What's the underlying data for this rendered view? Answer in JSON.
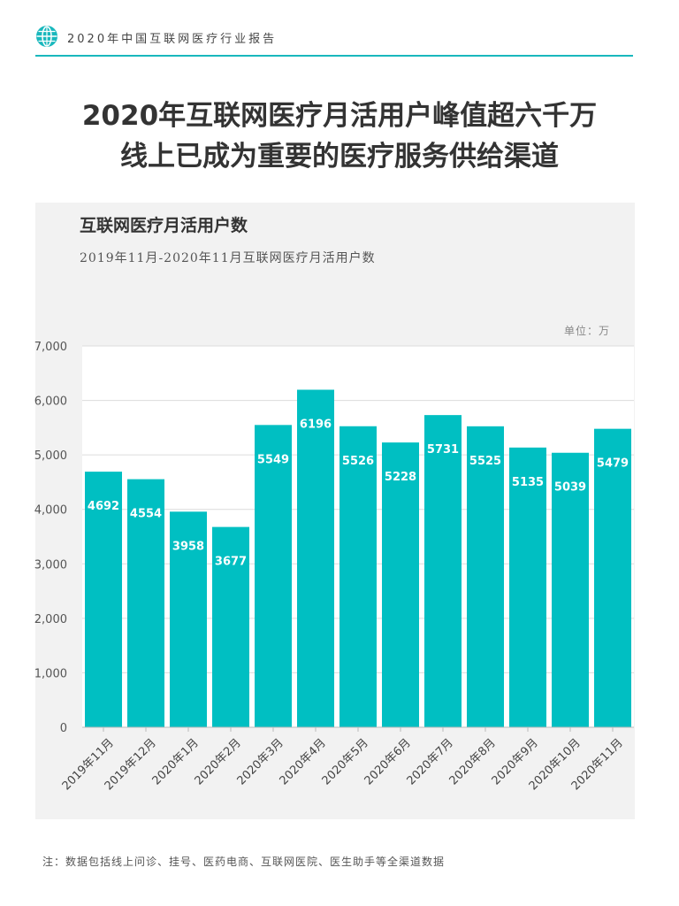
{
  "header": {
    "report_title": "2020年中国互联网医疗行业报告"
  },
  "headline": {
    "line1": "2020年互联网医疗月活用户峰值超六千万",
    "line2": "线上已成为重要的医疗服务供给渠道"
  },
  "colors": {
    "accent": "#19b8bd",
    "bar": "#00bfc2",
    "panel": "#f2f2f2"
  },
  "chart_data": {
    "type": "bar",
    "title": "互联网医疗月活用户数",
    "subtitle": "2019年11月-2020年11月互联网医疗月活用户数",
    "unit_label": "单位：万",
    "categories": [
      "2019年11月",
      "2019年12月",
      "2020年1月",
      "2020年2月",
      "2020年3月",
      "2020年4月",
      "2020年5月",
      "2020年6月",
      "2020年7月",
      "2020年8月",
      "2020年9月",
      "2020年10月",
      "2020年11月"
    ],
    "values": [
      4692,
      4554,
      3958,
      3677,
      5549,
      6196,
      5526,
      5228,
      5731,
      5525,
      5135,
      5039,
      5479
    ],
    "ylim": [
      0,
      7000
    ],
    "yticks": [
      "0",
      "1,000",
      "2,000",
      "3,000",
      "4,000",
      "5,000",
      "6,000",
      "7,000"
    ],
    "grid": true,
    "legend": "none"
  },
  "footnote": "注：数据包括线上问诊、挂号、医药电商、互联网医院、医生助手等全渠道数据"
}
